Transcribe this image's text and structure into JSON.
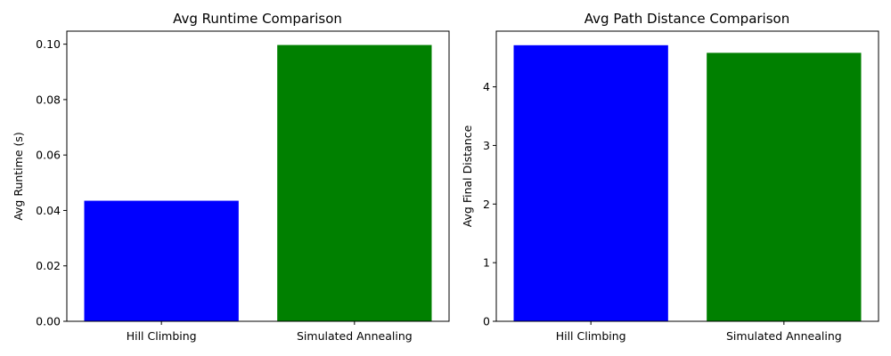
{
  "chart_data": [
    {
      "type": "bar",
      "title": "Avg Runtime Comparison",
      "xlabel": "",
      "ylabel": "Avg Runtime (s)",
      "categories": [
        "Hill Climbing",
        "Simulated Annealing"
      ],
      "values": [
        0.0435,
        0.0997
      ],
      "colors": [
        "#0000ff",
        "#008000"
      ],
      "ylim": [
        0,
        0.1047
      ],
      "yticks": [
        "0.00",
        "0.02",
        "0.04",
        "0.06",
        "0.08",
        "0.10"
      ],
      "grid": false
    },
    {
      "type": "bar",
      "title": "Avg Path Distance Comparison",
      "xlabel": "",
      "ylabel": "Avg Final Distance",
      "categories": [
        "Hill Climbing",
        "Simulated Annealing"
      ],
      "values": [
        4.71,
        4.58
      ],
      "colors": [
        "#0000ff",
        "#008000"
      ],
      "ylim": [
        0,
        4.95
      ],
      "yticks": [
        "0",
        "1",
        "2",
        "3",
        "4"
      ],
      "grid": false
    }
  ]
}
